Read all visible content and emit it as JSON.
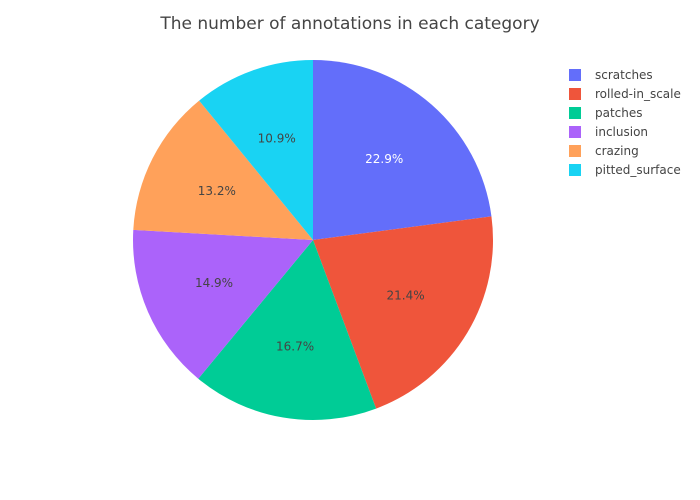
{
  "chart_data": {
    "type": "pie",
    "title": "The number of annotations in each category",
    "categories": [
      "scratches",
      "rolled-in_scale",
      "patches",
      "inclusion",
      "crazing",
      "pitted_surface"
    ],
    "values": [
      22.9,
      21.4,
      16.7,
      14.9,
      13.2,
      10.9
    ],
    "value_labels": [
      "22.9%",
      "21.4%",
      "16.7%",
      "14.9%",
      "13.2%",
      "10.9%"
    ],
    "colors": [
      "#636efa",
      "#EF553B",
      "#00cc96",
      "#ab63fa",
      "#FFA15A",
      "#19d3f3"
    ],
    "label_colors": [
      "#ffffff",
      "#444444",
      "#444444",
      "#444444",
      "#444444",
      "#444444"
    ],
    "direction": "clockwise",
    "legend_position": "top-right"
  }
}
